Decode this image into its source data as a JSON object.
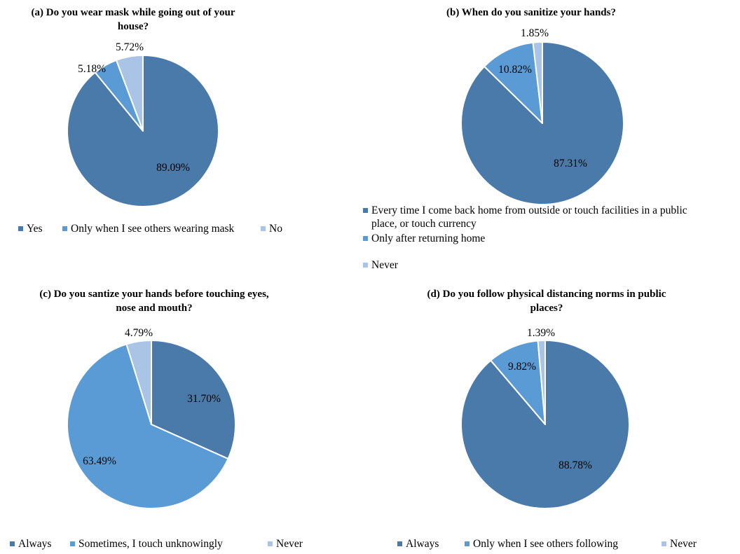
{
  "colors": {
    "dark": "#4a7aaa",
    "mid": "#5b9bd5",
    "light": "#a9c4e4"
  },
  "chart_data": [
    {
      "type": "pie",
      "title": [
        "(a) Do you wear mask while going out of your",
        "house?"
      ],
      "categories": [
        "Yes",
        "Only when I see others wearing mask",
        "No"
      ],
      "values": [
        89.09,
        5.18,
        5.72
      ],
      "data_labels": [
        "89.09%",
        "5.18%",
        "5.72%"
      ],
      "colors": [
        "#4a7aaa",
        "#5b9bd5",
        "#a9c4e4"
      ],
      "legend": "bottom"
    },
    {
      "type": "pie",
      "title": [
        "(b) When do you sanitize your hands?"
      ],
      "categories": [
        "Every time I come back home from outside or touch facilities in a public place, or touch currency",
        "Only after returning home",
        "Never"
      ],
      "legend_lines": [
        [
          "Every time I come back home from outside or touch facilities in a public",
          "place, or touch currency"
        ],
        [
          "Only after returning home"
        ],
        [
          "Never"
        ]
      ],
      "values": [
        87.31,
        10.82,
        1.85
      ],
      "data_labels": [
        "87.31%",
        "10.82%",
        "1.85%"
      ],
      "colors": [
        "#4a7aaa",
        "#5b9bd5",
        "#a9c4e4"
      ],
      "legend": "bottom"
    },
    {
      "type": "pie",
      "title": [
        "(c) Do you santize your hands before touching  eyes,",
        "nose and mouth?"
      ],
      "categories": [
        "Always",
        "Sometimes, I touch unknowingly",
        "Never"
      ],
      "values": [
        31.7,
        63.49,
        4.79
      ],
      "data_labels": [
        "31.70%",
        "63.49%",
        "4.79%"
      ],
      "colors": [
        "#4a7aaa",
        "#5b9bd5",
        "#a9c4e4"
      ],
      "legend": "bottom"
    },
    {
      "type": "pie",
      "title": [
        "(d) Do you follow physical distancing norms in public",
        "places?"
      ],
      "categories": [
        "Always",
        "Only when I see others following",
        "Never"
      ],
      "values": [
        88.78,
        9.82,
        1.39
      ],
      "data_labels": [
        "88.78%",
        "9.82%",
        "1.39%"
      ],
      "colors": [
        "#4a7aaa",
        "#5b9bd5",
        "#a9c4e4"
      ],
      "legend": "bottom"
    }
  ]
}
